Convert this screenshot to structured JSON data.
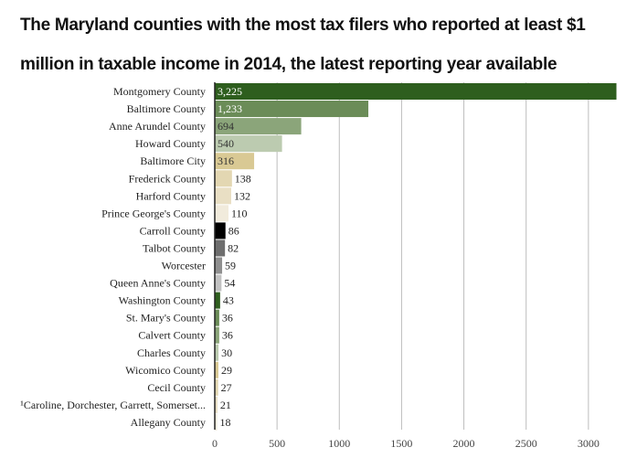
{
  "chart_data": {
    "type": "bar",
    "orientation": "horizontal",
    "title": "The Maryland counties with the most tax filers who reported at least $1 million in taxable income in 2014, the latest reporting year available",
    "categories": [
      "Montgomery County",
      "Baltimore County",
      "Anne Arundel County",
      "Howard County",
      "Baltimore City",
      "Frederick County",
      "Harford County",
      "Prince George's County",
      "Carroll County",
      "Talbot County",
      "Worcester",
      "Queen Anne's County",
      "Washington County",
      "St. Mary's County",
      "Calvert County",
      "Charles County",
      "Wicomico County",
      "Cecil County",
      "¹Caroline, Dorchester, Garrett, Somerset...",
      "Allegany County"
    ],
    "values": [
      3225,
      1233,
      694,
      540,
      316,
      138,
      132,
      110,
      86,
      82,
      59,
      54,
      43,
      36,
      36,
      30,
      29,
      27,
      21,
      18
    ],
    "value_labels": [
      "3,225",
      "1,233",
      "694",
      "540",
      "316",
      "138",
      "132",
      "110",
      "86",
      "82",
      "59",
      "54",
      "43",
      "36",
      "36",
      "30",
      "29",
      "27",
      "21",
      "18"
    ],
    "bar_colors": [
      "#2e5e1e",
      "#6b8c58",
      "#8ba57a",
      "#bccbb0",
      "#d9c994",
      "#e3d7b2",
      "#e9dfc4",
      "#f1ebdc",
      "#000000",
      "#6e6e6e",
      "#8f8f8f",
      "#c2c2c2",
      "#2e5e1e",
      "#6b8c58",
      "#8ba57a",
      "#bccbb0",
      "#d9c994",
      "#e3d7b2",
      "#e9dfc4",
      "#f1ebdc"
    ],
    "inside_label_colors": [
      "#ffffff",
      "#ffffff",
      "#333333",
      "#333333",
      "#333333"
    ],
    "outside_label_color": "#222222",
    "x_ticks": [
      0,
      500,
      1000,
      1500,
      2000,
      2500,
      3000
    ],
    "xlim": [
      0,
      3280
    ],
    "grid": true,
    "grid_color": "#bdbdbd",
    "xlabel": "",
    "ylabel": ""
  }
}
